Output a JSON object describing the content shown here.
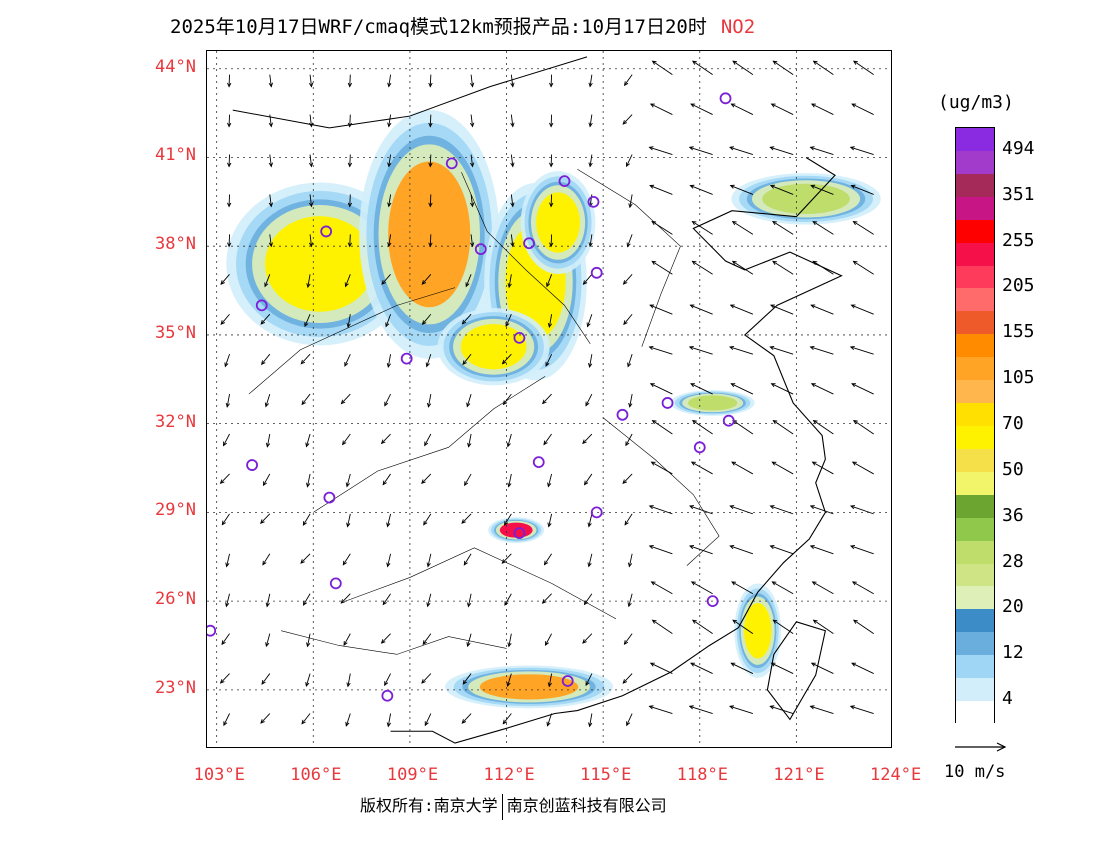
{
  "header": {
    "title": "2025年10月17日WRF/cmaq模式12km预报产品:10月17日20时",
    "pollutant": "NO2"
  },
  "map": {
    "lat_labels": [
      "44°N",
      "41°N",
      "38°N",
      "35°N",
      "32°N",
      "29°N",
      "26°N",
      "23°N"
    ],
    "lon_labels": [
      "103°E",
      "106°E",
      "109°E",
      "112°E",
      "115°E",
      "118°E",
      "121°E",
      "124°E"
    ],
    "extent": {
      "lon_min": 102.7,
      "lon_max": 124.0,
      "lat_min": 21.0,
      "lat_max": 44.6
    },
    "stations": [
      [
        118.8,
        43.0
      ],
      [
        110.3,
        40.8
      ],
      [
        113.8,
        40.2
      ],
      [
        114.7,
        39.5
      ],
      [
        106.4,
        38.5
      ],
      [
        111.2,
        37.9
      ],
      [
        112.7,
        38.1
      ],
      [
        114.8,
        37.1
      ],
      [
        104.4,
        36.0
      ],
      [
        112.4,
        34.9
      ],
      [
        108.9,
        34.2
      ],
      [
        117.0,
        32.7
      ],
      [
        118.9,
        32.1
      ],
      [
        115.6,
        32.3
      ],
      [
        118.0,
        31.2
      ],
      [
        104.1,
        30.6
      ],
      [
        113.0,
        30.7
      ],
      [
        106.5,
        29.5
      ],
      [
        114.8,
        29.0
      ],
      [
        112.4,
        28.3
      ],
      [
        106.7,
        26.6
      ],
      [
        118.4,
        26.0
      ],
      [
        102.8,
        25.0
      ],
      [
        113.9,
        23.3
      ],
      [
        108.3,
        22.8
      ]
    ],
    "pollution_areas": [
      {
        "lon": 106.2,
        "lat": 37.4,
        "rx": 2.0,
        "ry": 1.9,
        "level": "moderate"
      },
      {
        "lon": 109.6,
        "lat": 38.4,
        "rx": 1.5,
        "ry": 2.9,
        "level": "high"
      },
      {
        "lon": 112.9,
        "lat": 36.8,
        "rx": 1.1,
        "ry": 2.3,
        "level": "moderate"
      },
      {
        "lon": 113.6,
        "lat": 38.8,
        "rx": 0.8,
        "ry": 1.2,
        "level": "moderate"
      },
      {
        "lon": 111.6,
        "lat": 34.6,
        "rx": 1.2,
        "ry": 0.9,
        "level": "moderate"
      },
      {
        "lon": 119.8,
        "lat": 25.0,
        "rx": 0.5,
        "ry": 1.1,
        "level": "moderate"
      },
      {
        "lon": 112.7,
        "lat": 23.1,
        "rx": 1.8,
        "ry": 0.5,
        "level": "high"
      },
      {
        "lon": 112.3,
        "lat": 28.4,
        "rx": 0.6,
        "ry": 0.3,
        "level": "very_high"
      },
      {
        "lon": 121.3,
        "lat": 39.6,
        "rx": 1.6,
        "ry": 0.6,
        "level": "low"
      },
      {
        "lon": 118.4,
        "lat": 32.7,
        "rx": 0.9,
        "ry": 0.3,
        "level": "low"
      }
    ]
  },
  "colorbar": {
    "unit": "(ug/m3)",
    "labels": [
      "494",
      "351",
      "255",
      "205",
      "155",
      "105",
      "70",
      "50",
      "36",
      "28",
      "20",
      "12",
      "4"
    ],
    "colors": [
      "#8a2be2",
      "#a23bcc",
      "#a52a5a",
      "#c71585",
      "#ff0000",
      "#f5104a",
      "#ff3b5c",
      "#ff6a6a",
      "#ee5a2a",
      "#ff8c00",
      "#ffa424",
      "#ffb74d",
      "#ffe000",
      "#fff200",
      "#f5e04a",
      "#f2f56a",
      "#6ca630",
      "#8fc84a",
      "#bedd6a",
      "#cfe585",
      "#dfefb8",
      "#3c8cc8",
      "#6aaede",
      "#a0d6f5",
      "#d2eefb",
      "#ffffff"
    ]
  },
  "wind": {
    "label": "10 m/s"
  },
  "footer": {
    "rights": "版权所有:南京大学",
    "company": "南京创蓝科技有限公司"
  },
  "level_colors": {
    "low": "#bedd6a",
    "moderate": "#fff200",
    "high": "#ffa424",
    "very_high": "#f5104a"
  }
}
